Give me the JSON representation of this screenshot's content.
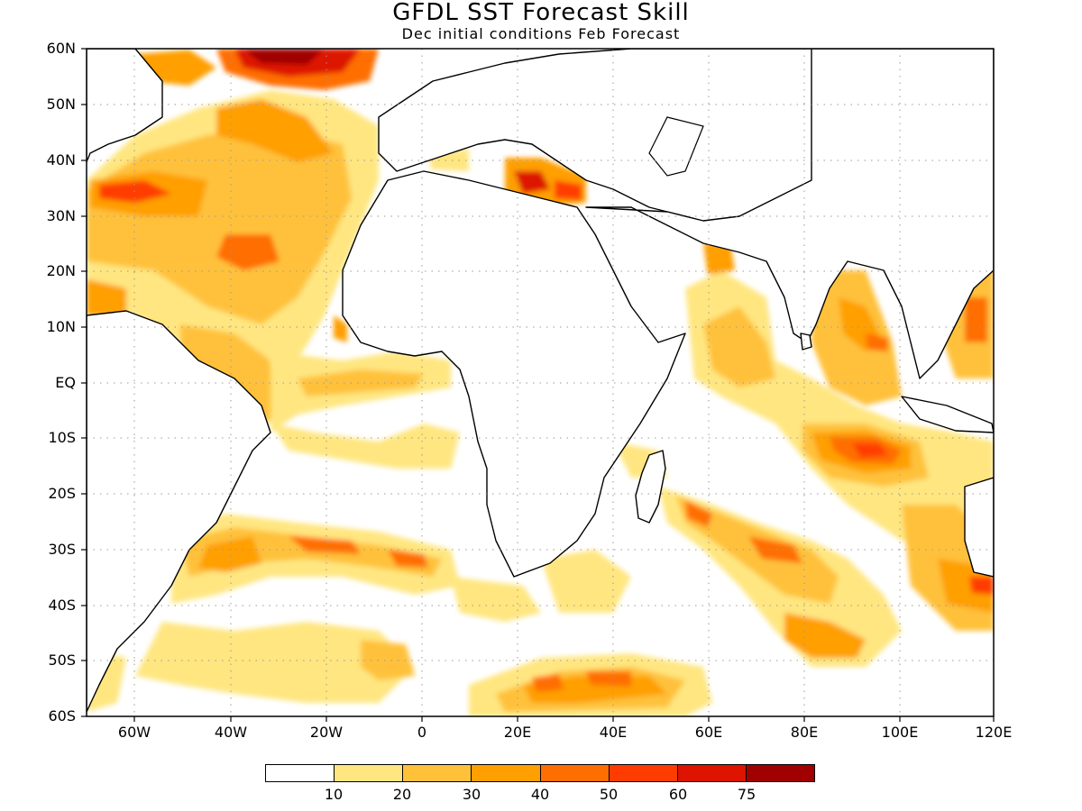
{
  "title": "GFDL SST Forecast Skill",
  "subtitle": "Dec initial conditions  Feb Forecast",
  "axes": {
    "lat_labels": [
      "60N",
      "50N",
      "40N",
      "30N",
      "20N",
      "10N",
      "EQ",
      "10S",
      "20S",
      "30S",
      "40S",
      "50S",
      "60S"
    ],
    "lon_labels": [
      "60W",
      "40W",
      "20W",
      "0",
      "20E",
      "40E",
      "60E",
      "80E",
      "100E",
      "120E"
    ]
  },
  "colorbar": {
    "colors": [
      "#ffffff",
      "#ffe680",
      "#ffc13a",
      "#ff9f00",
      "#ff6e00",
      "#ff3c00",
      "#dd1400",
      "#a00000"
    ],
    "labels": [
      "10",
      "20",
      "30",
      "40",
      "50",
      "60",
      "75"
    ]
  },
  "map": {
    "land_color": "#ffffff",
    "coast_color": "#000000",
    "grid": "dotted"
  }
}
